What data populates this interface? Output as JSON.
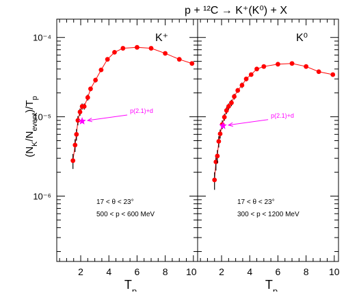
{
  "chart_data": {
    "type": "scatter",
    "title": "p + ¹²C → K⁺(K⁰) + X",
    "ylabel": "(N_K/N_event)/T_p",
    "y_scale": "log",
    "ylim": [
      1.5e-07,
      0.00017
    ],
    "ytick_labels": [
      "10⁻⁴",
      "10⁻⁵",
      "10⁻⁶"
    ],
    "ytick_values": [
      0.0001,
      1e-05,
      1e-06
    ],
    "grid": false,
    "color": "#ff0000",
    "annotation_color": "#ff00ff",
    "panels": [
      {
        "name": "K+",
        "label": "K⁺",
        "xlabel": "Tp",
        "xlim": [
          0.3,
          10.3
        ],
        "xticks": [
          "2",
          "4",
          "6",
          "8",
          "10"
        ],
        "annotation": {
          "text": "p(2.1)+d",
          "x": 2.1,
          "y": 8.8e-06
        },
        "cuts": [
          "17 < θ < 23°",
          "500 < p < 600 MeV"
        ],
        "series": [
          {
            "x": [
              1.45,
              1.6,
              1.7,
              1.8,
              1.95,
              2.1,
              2.25,
              2.5,
              2.7,
              3.05,
              3.45,
              3.9,
              4.4,
              5.0,
              6.0,
              7.0,
              8.0,
              9.0,
              9.9
            ],
            "y": [
              2.8e-06,
              4.4e-06,
              6e-06,
              9e-06,
              1.15e-05,
              1.35e-05,
              1.35e-05,
              1.75e-05,
              2.25e-05,
              2.9e-05,
              3.9e-05,
              5.3e-05,
              6.5e-05,
              7.3e-05,
              7.5e-05,
              7.3e-05,
              6.3e-05,
              5.3e-05,
              4.7e-05
            ],
            "yerr": [
              6e-07,
              8e-07,
              1e-06,
              1.2e-06,
              1.2e-06,
              1.2e-06,
              1.2e-06,
              1.5e-06,
              1.5e-06,
              2e-06,
              2e-06,
              3e-06,
              3e-06,
              3e-06,
              3e-06,
              3e-06,
              3e-06,
              3e-06,
              3e-06
            ]
          }
        ]
      },
      {
        "name": "K0",
        "label": "K⁰",
        "xlabel": "Tp",
        "xlim": [
          0.3,
          10.3
        ],
        "xticks": [
          "2",
          "4",
          "6",
          "8",
          "10"
        ],
        "annotation": {
          "text": "p(2.1)+d",
          "x": 2.1,
          "y": 7.7e-06
        },
        "cuts": [
          "17 < θ < 23°",
          "300 < p < 1200 MeV"
        ],
        "series": [
          {
            "x": [
              1.5,
              1.6,
              1.7,
              1.8,
              1.9,
              2.05,
              2.2,
              2.35,
              2.5,
              2.7,
              2.9,
              3.15,
              3.45,
              3.75,
              4.1,
              4.5,
              5.0,
              6.0,
              7.0,
              8.0,
              8.9,
              9.9
            ],
            "y": [
              1.6e-06,
              2.7e-06,
              3.2e-06,
              4.9e-06,
              6.1e-06,
              8e-06,
              9.9e-06,
              1.2e-05,
              1.35e-05,
              1.5e-05,
              1.8e-05,
              2.15e-05,
              2.5e-05,
              3e-05,
              3.4e-05,
              4e-05,
              4.3e-05,
              4.6e-05,
              4.7e-05,
              4.3e-05,
              3.7e-05,
              3.4e-05
            ],
            "yerr": [
              4e-07,
              6e-07,
              6e-07,
              8e-07,
              8e-07,
              1e-06,
              1e-06,
              1.2e-06,
              1.2e-06,
              1.4e-06,
              1.5e-06,
              1.5e-06,
              2e-06,
              2e-06,
              2e-06,
              2e-06,
              2e-06,
              2e-06,
              2e-06,
              2e-06,
              2e-06,
              2e-06
            ]
          }
        ]
      }
    ]
  }
}
